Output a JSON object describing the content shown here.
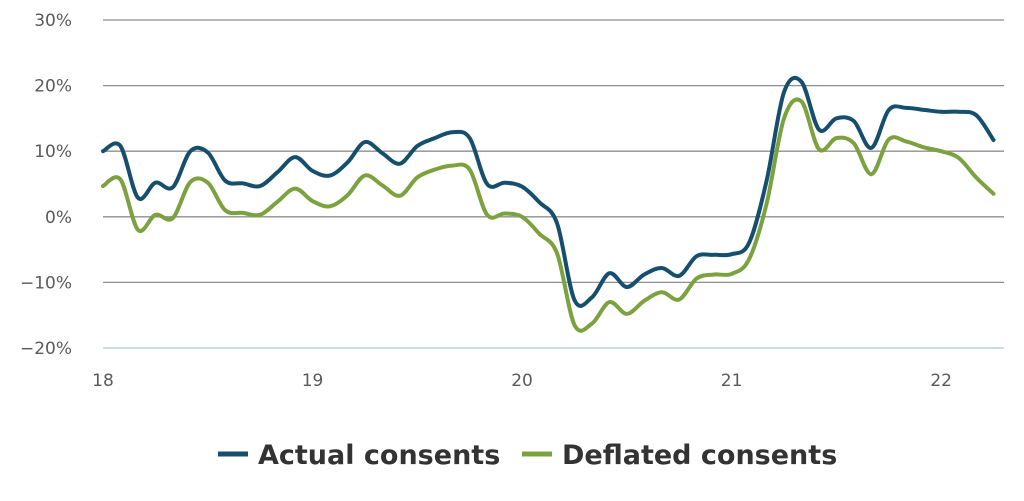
{
  "chart_data": {
    "type": "line",
    "title": "",
    "xlabel": "",
    "ylabel": "",
    "xlim": [
      18,
      22.3
    ],
    "ylim": [
      -20,
      30
    ],
    "grid": true,
    "legend_position": "bottom",
    "x_ticks": [
      {
        "value": 18,
        "label": "18"
      },
      {
        "value": 19,
        "label": "19"
      },
      {
        "value": 20,
        "label": "20"
      },
      {
        "value": 21,
        "label": "21"
      },
      {
        "value": 22,
        "label": "22"
      }
    ],
    "y_ticks": [
      {
        "value": 30,
        "label": "30%"
      },
      {
        "value": 20,
        "label": "20%"
      },
      {
        "value": 10,
        "label": "10%"
      },
      {
        "value": 0,
        "label": "0%"
      },
      {
        "value": -10,
        "label": "−10%"
      },
      {
        "value": -20,
        "label": "−20%"
      }
    ],
    "series": [
      {
        "name": "Actual consents",
        "color": "#164f6e",
        "x": [
          18.0,
          18.083,
          18.167,
          18.25,
          18.333,
          18.417,
          18.5,
          18.583,
          18.667,
          18.75,
          18.833,
          18.917,
          19.0,
          19.083,
          19.167,
          19.25,
          19.333,
          19.417,
          19.5,
          19.583,
          19.667,
          19.75,
          19.833,
          19.917,
          20.0,
          20.083,
          20.167,
          20.25,
          20.333,
          20.417,
          20.5,
          20.583,
          20.667,
          20.75,
          20.833,
          20.917,
          21.0,
          21.083,
          21.167,
          21.25,
          21.333,
          21.417,
          21.5,
          21.583,
          21.667,
          21.75,
          21.833,
          21.917,
          22.0,
          22.083,
          22.167,
          22.25
        ],
        "values": [
          10.0,
          10.8,
          2.9,
          5.2,
          4.5,
          10.0,
          9.8,
          5.5,
          5.1,
          4.7,
          6.8,
          9.1,
          7.0,
          6.3,
          8.3,
          11.4,
          9.7,
          8.1,
          10.8,
          12.0,
          12.9,
          12.0,
          5.0,
          5.2,
          4.6,
          2.2,
          -1.0,
          -12.7,
          -12.3,
          -8.6,
          -10.7,
          -8.8,
          -7.8,
          -9.0,
          -6.0,
          -5.8,
          -5.7,
          -4.0,
          5.5,
          19.0,
          20.6,
          13.3,
          15.0,
          14.6,
          10.5,
          16.3,
          16.6,
          16.3,
          16.0,
          16.0,
          15.5,
          11.7
        ]
      },
      {
        "name": "Deflated consents",
        "color": "#7ba23e",
        "x": [
          18.0,
          18.083,
          18.167,
          18.25,
          18.333,
          18.417,
          18.5,
          18.583,
          18.667,
          18.75,
          18.833,
          18.917,
          19.0,
          19.083,
          19.167,
          19.25,
          19.333,
          19.417,
          19.5,
          19.583,
          19.667,
          19.75,
          19.833,
          19.917,
          20.0,
          20.083,
          20.167,
          20.25,
          20.333,
          20.417,
          20.5,
          20.583,
          20.667,
          20.75,
          20.833,
          20.917,
          21.0,
          21.083,
          21.167,
          21.25,
          21.333,
          21.417,
          21.5,
          21.583,
          21.667,
          21.75,
          21.833,
          21.917,
          22.0,
          22.083,
          22.167,
          22.25
        ],
        "values": [
          4.7,
          5.7,
          -2.0,
          0.3,
          -0.2,
          5.3,
          5.2,
          1.0,
          0.6,
          0.3,
          2.3,
          4.3,
          2.4,
          1.6,
          3.3,
          6.3,
          4.8,
          3.2,
          6.0,
          7.2,
          7.8,
          7.2,
          0.3,
          0.5,
          0.0,
          -2.6,
          -5.6,
          -16.5,
          -16.3,
          -13.0,
          -14.8,
          -12.8,
          -11.5,
          -12.6,
          -9.4,
          -8.8,
          -8.7,
          -6.5,
          2.0,
          15.0,
          17.6,
          10.3,
          12.0,
          11.2,
          6.5,
          11.8,
          11.5,
          10.6,
          10.0,
          9.0,
          6.0,
          3.5
        ]
      }
    ]
  }
}
